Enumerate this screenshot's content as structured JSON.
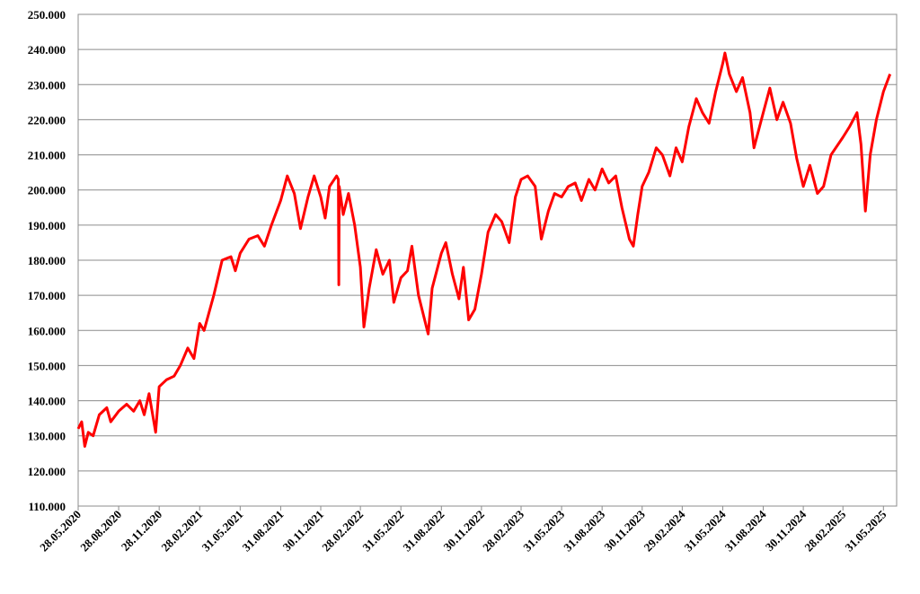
{
  "chart_data": {
    "type": "line",
    "x": [
      "28.05.2020",
      "05.06.2020",
      "12.06.2020",
      "20.06.2020",
      "01.07.2020",
      "15.07.2020",
      "01.08.2020",
      "10.08.2020",
      "28.08.2020",
      "15.09.2020",
      "01.10.2020",
      "15.10.2020",
      "25.10.2020",
      "05.11.2020",
      "20.11.2020",
      "28.11.2020",
      "15.12.2020",
      "01.01.2021",
      "15.01.2021",
      "01.02.2021",
      "15.02.2021",
      "28.02.2021",
      "10.03.2021",
      "01.04.2021",
      "20.04.2021",
      "10.05.2021",
      "20.05.2021",
      "31.05.2021",
      "20.06.2021",
      "10.07.2021",
      "25.07.2021",
      "10.08.2021",
      "31.08.2021",
      "15.09.2021",
      "01.10.2021",
      "15.10.2021",
      "01.11.2021",
      "15.11.2021",
      "30.11.2021",
      "10.12.2021",
      "20.12.2021",
      "05.01.2022",
      "09.01.2022",
      "10.01.2022",
      "11.01.2022",
      "20.01.2022",
      "01.02.2022",
      "15.02.2022",
      "28.02.2022",
      "08.03.2022",
      "20.03.2022",
      "05.04.2022",
      "20.04.2022",
      "05.05.2022",
      "15.05.2022",
      "31.05.2022",
      "15.06.2022",
      "25.06.2022",
      "10.07.2022",
      "20.07.2022",
      "01.08.2022",
      "10.08.2022",
      "31.08.2022",
      "10.09.2022",
      "25.09.2022",
      "10.10.2022",
      "20.10.2022",
      "01.11.2022",
      "15.11.2022",
      "30.11.2022",
      "15.12.2022",
      "01.01.2023",
      "15.01.2023",
      "01.02.2023",
      "15.02.2023",
      "28.02.2023",
      "15.03.2023",
      "01.04.2023",
      "15.04.2023",
      "01.05.2023",
      "15.05.2023",
      "31.05.2023",
      "15.06.2023",
      "01.07.2023",
      "15.07.2023",
      "01.08.2023",
      "15.08.2023",
      "31.08.2023",
      "15.09.2023",
      "01.10.2023",
      "15.10.2023",
      "01.11.2023",
      "10.11.2023",
      "20.11.2023",
      "30.11.2023",
      "15.12.2023",
      "01.01.2024",
      "15.01.2024",
      "01.02.2024",
      "15.02.2024",
      "29.02.2024",
      "15.03.2024",
      "01.04.2024",
      "15.04.2024",
      "30.04.2024",
      "15.05.2024",
      "31.05.2024",
      "05.06.2024",
      "15.06.2024",
      "01.07.2024",
      "15.07.2024",
      "01.08.2024",
      "10.08.2024",
      "31.08.2024",
      "15.09.2024",
      "01.10.2024",
      "15.10.2024",
      "01.11.2024",
      "15.11.2024",
      "30.11.2024",
      "15.12.2024",
      "01.01.2025",
      "15.01.2025",
      "01.02.2025",
      "28.02.2025",
      "15.03.2025",
      "01.04.2025",
      "10.04.2025",
      "20.04.2025",
      "01.05.2025",
      "15.05.2025",
      "31.05.2025",
      "15.06.2025"
    ],
    "series": [
      {
        "color": "#ff0000",
        "values": [
          132000,
          134000,
          127000,
          131000,
          130000,
          136000,
          138000,
          134000,
          137000,
          139000,
          137000,
          140000,
          136000,
          142000,
          131000,
          144000,
          146000,
          147000,
          150000,
          155000,
          152000,
          162000,
          160000,
          170000,
          180000,
          181000,
          177000,
          182000,
          186000,
          187000,
          184000,
          190000,
          197000,
          204000,
          199000,
          189000,
          198000,
          204000,
          198000,
          192000,
          201000,
          204000,
          203000,
          173000,
          201000,
          193000,
          199000,
          190000,
          178000,
          161000,
          172000,
          183000,
          176000,
          180000,
          168000,
          175000,
          177000,
          184000,
          170000,
          165000,
          159000,
          172000,
          182000,
          185000,
          176000,
          169000,
          178000,
          163000,
          166000,
          176000,
          188000,
          193000,
          191000,
          185000,
          198000,
          203000,
          204000,
          201000,
          186000,
          194000,
          199000,
          198000,
          201000,
          202000,
          197000,
          203000,
          200000,
          206000,
          202000,
          204000,
          195000,
          186000,
          184000,
          193000,
          201000,
          205000,
          212000,
          210000,
          204000,
          212000,
          208000,
          218000,
          226000,
          222000,
          219000,
          228000,
          236000,
          239000,
          233000,
          228000,
          232000,
          222000,
          212000,
          222000,
          229000,
          220000,
          225000,
          219000,
          209000,
          201000,
          207000,
          199000,
          201000,
          210000,
          215000,
          218000,
          222000,
          213000,
          194000,
          210000,
          220000,
          228000,
          233000
        ]
      }
    ],
    "xlim": [
      "28.05.2020",
      "30.06.2025"
    ],
    "xticks": [
      "28.05.2020",
      "28.08.2020",
      "28.11.2020",
      "28.02.2021",
      "31.05.2021",
      "31.08.2021",
      "30.11.2021",
      "28.02.2022",
      "31.05.2022",
      "31.08.2022",
      "30.11.2022",
      "28.02.2023",
      "31.05.2023",
      "31.08.2023",
      "30.11.2023",
      "29.02.2024",
      "31.05.2024",
      "31.08.2024",
      "30.11.2024",
      "28.02.2025",
      "31.05.2025"
    ],
    "ylim": [
      110000,
      250000
    ],
    "yticks": [
      {
        "value": 110000,
        "label": "110.000"
      },
      {
        "value": 120000,
        "label": "120.000"
      },
      {
        "value": 130000,
        "label": "130.000"
      },
      {
        "value": 140000,
        "label": "140.000"
      },
      {
        "value": 150000,
        "label": "150.000"
      },
      {
        "value": 160000,
        "label": "160.000"
      },
      {
        "value": 170000,
        "label": "170.000"
      },
      {
        "value": 180000,
        "label": "180.000"
      },
      {
        "value": 190000,
        "label": "190.000"
      },
      {
        "value": 200000,
        "label": "200.000"
      },
      {
        "value": 210000,
        "label": "210.000"
      },
      {
        "value": 220000,
        "label": "220.000"
      },
      {
        "value": 230000,
        "label": "230.000"
      },
      {
        "value": 240000,
        "label": "240.000"
      },
      {
        "value": 250000,
        "label": "250.000"
      }
    ],
    "grid": true
  }
}
